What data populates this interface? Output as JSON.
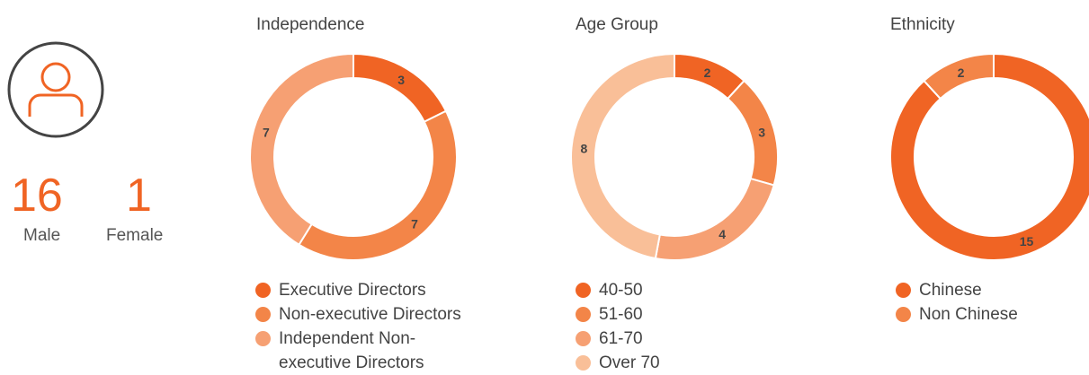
{
  "gender": {
    "male_count": 16,
    "male_label": "Male",
    "female_count": 1,
    "female_label": "Female"
  },
  "chart_data": [
    {
      "type": "donut",
      "title": "Independence",
      "categories": [
        "Executive Directors",
        "Non-executive Directors",
        "Independent Non-executive Directors"
      ],
      "values": [
        3,
        7,
        7
      ],
      "colors": [
        "#f06424",
        "#f38548",
        "#f6a073"
      ]
    },
    {
      "type": "donut",
      "title": "Age Group",
      "categories": [
        "40-50",
        "51-60",
        "61-70",
        "Over 70"
      ],
      "values": [
        2,
        3,
        4,
        8
      ],
      "colors": [
        "#f06424",
        "#f38548",
        "#f6a073",
        "#f9bf98"
      ]
    },
    {
      "type": "donut",
      "title": "Ethnicity",
      "categories": [
        "Chinese",
        "Non Chinese"
      ],
      "values": [
        15,
        2
      ],
      "colors": [
        "#f06424",
        "#f38548"
      ]
    }
  ]
}
